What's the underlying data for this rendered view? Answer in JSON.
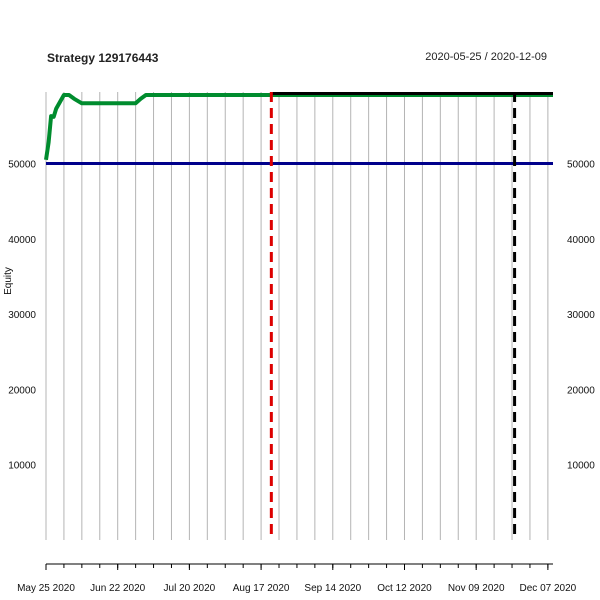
{
  "chart_data": {
    "type": "line",
    "title": "Strategy 129176443",
    "subtitle": "2020-05-25 / 2020-12-09",
    "xlabel": "",
    "ylabel": "Equity",
    "xlim": [
      "2020-05-25",
      "2020-12-09"
    ],
    "ylim": [
      0,
      59500
    ],
    "grid": true,
    "x_ticks": [
      {
        "date": "2020-05-25",
        "label": "May 25 2020"
      },
      {
        "date": "2020-06-22",
        "label": "Jun 22 2020"
      },
      {
        "date": "2020-07-20",
        "label": "Jul 20 2020"
      },
      {
        "date": "2020-08-17",
        "label": "Aug 17 2020"
      },
      {
        "date": "2020-09-14",
        "label": "Sep 14 2020"
      },
      {
        "date": "2020-10-12",
        "label": "Oct 12 2020"
      },
      {
        "date": "2020-11-09",
        "label": "Nov 09 2020"
      },
      {
        "date": "2020-12-07",
        "label": "Dec 07 2020"
      }
    ],
    "y_ticks": [
      10000,
      20000,
      30000,
      40000,
      50000
    ],
    "series": [
      {
        "color": "#008C2E",
        "x": [
          "2020-05-25",
          "2020-05-26",
          "2020-05-27",
          "2020-05-28",
          "2020-05-29",
          "2020-06-01",
          "2020-06-02",
          "2020-06-03",
          "2020-06-05",
          "2020-06-08",
          "2020-06-10",
          "2020-06-15",
          "2020-06-20",
          "2020-06-29",
          "2020-07-01",
          "2020-07-03",
          "2020-12-09"
        ],
        "values": [
          50500,
          52800,
          56300,
          56200,
          57300,
          59100,
          59100,
          59100,
          58600,
          58000,
          58000,
          58000,
          58000,
          58000,
          58600,
          59100,
          59100
        ]
      },
      {
        "color": "#000000",
        "x": [
          "2020-08-21",
          "2020-12-09"
        ],
        "values": [
          59300,
          59300
        ]
      },
      {
        "color": "#00008B",
        "x": [
          "2020-05-25",
          "2020-12-09"
        ],
        "values": [
          50000,
          50000
        ]
      }
    ],
    "vlines": [
      {
        "date": "2020-08-21",
        "color": "#DD0000"
      },
      {
        "date": "2020-11-24",
        "color": "#000000"
      }
    ]
  }
}
